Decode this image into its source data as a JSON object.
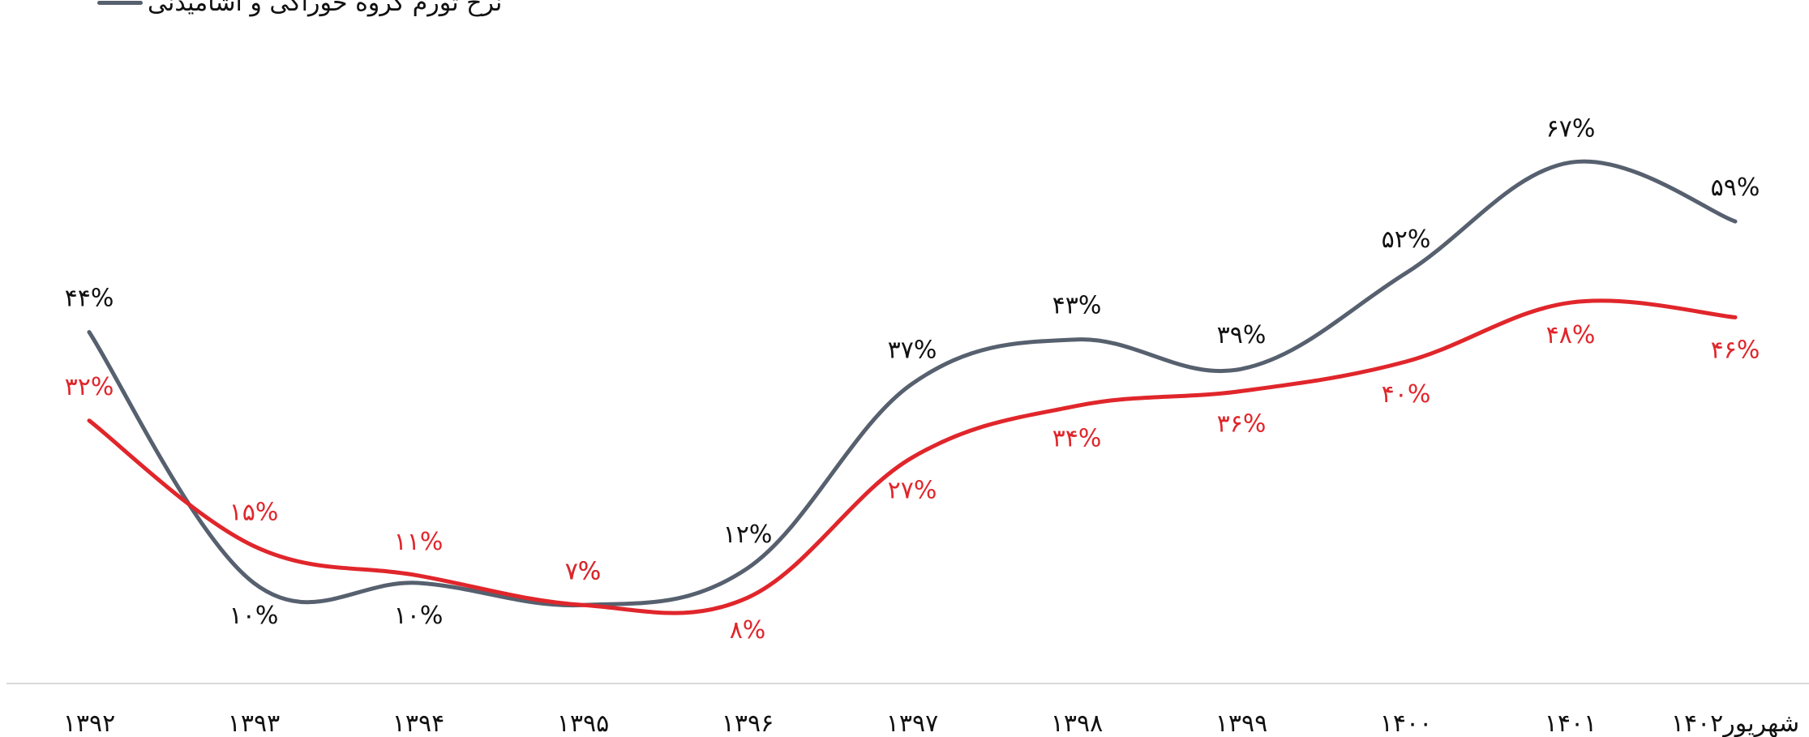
{
  "legend": {
    "series_label": "نرخ تورم گروه خوراکی و آشامیدنی"
  },
  "chart_data": {
    "type": "line",
    "x": [
      "۱۳۹۲",
      "۱۳۹۳",
      "۱۳۹۴",
      "۱۳۹۵",
      "۱۳۹۶",
      "۱۳۹۷",
      "۱۳۹۸",
      "۱۳۹۹",
      "۱۴۰۰",
      "۱۴۰۱",
      "شهریور۱۴۰۲"
    ],
    "series": [
      {
        "name": "نرخ تورم گروه خوراکی و آشامیدنی",
        "color": "#56606e",
        "values": [
          44,
          10,
          10,
          7,
          12,
          37,
          43,
          39,
          52,
          67,
          59
        ],
        "labels": [
          "۴۴%",
          "۱۰%",
          "۱۰%",
          "۷%",
          "۱۲%",
          "۳۷%",
          "۴۳%",
          "۳۹%",
          "۵۲%",
          "۶۷%",
          "۵۹%"
        ]
      },
      {
        "name": "",
        "color": "#e0262b",
        "values": [
          32,
          15,
          11,
          7,
          8,
          27,
          34,
          36,
          40,
          48,
          46
        ],
        "labels": [
          "۳۲%",
          "۱۵%",
          "۱۱%",
          "۷%",
          "۸%",
          "۲۷%",
          "۳۴%",
          "۳۶%",
          "۴۰%",
          "۴۸%",
          "۴۶%"
        ]
      }
    ],
    "ylim": [
      0,
      70
    ],
    "grid": false,
    "legend_position": "top-left"
  }
}
